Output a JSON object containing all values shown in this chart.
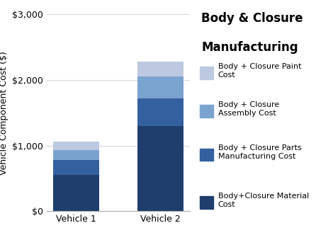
{
  "categories": [
    "Vehicle 1",
    "Vehicle 2"
  ],
  "segments": [
    {
      "label": "Body+Closure Material\nCost",
      "values": [
        550,
        1300
      ],
      "color": "#1F3E6E"
    },
    {
      "label": "Body + Closure Parts\nManufacturing Cost",
      "values": [
        230,
        420
      ],
      "color": "#3460A0"
    },
    {
      "label": "Body + Closure\nAssembly Cost",
      "values": [
        150,
        330
      ],
      "color": "#7BA3D0"
    },
    {
      "label": "Body + Closure Paint\nCost",
      "values": [
        130,
        230
      ],
      "color": "#BDC9E1"
    }
  ],
  "title_line1": "Body & Closure",
  "title_line2": "Manufacturing",
  "ylabel": "Vehicle Component Cost ($)",
  "ylim": [
    0,
    3000
  ],
  "yticks": [
    0,
    1000,
    2000,
    3000
  ],
  "ytick_labels": [
    "$0",
    "$1,000",
    "$2,000",
    "$3,000"
  ],
  "bar_width": 0.55,
  "background_color": "#ffffff",
  "title_fontsize": 12,
  "legend_fontsize": 8,
  "axis_fontsize": 9
}
